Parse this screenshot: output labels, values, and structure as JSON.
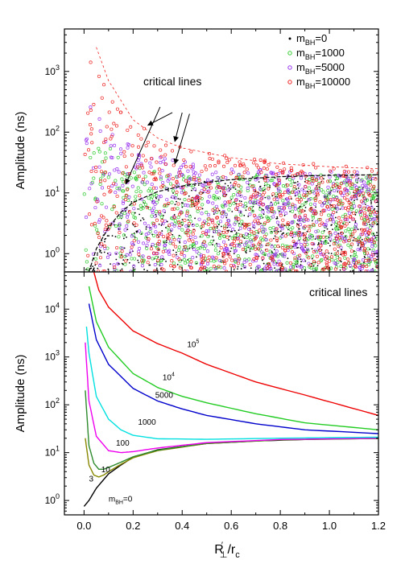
{
  "figure": {
    "x_axis_label": "R′⊥/rc",
    "x_axis_label_parts": {
      "base": "R",
      "prime": "′",
      "sub": "⊥",
      "slash": "/r",
      "sub2": "c"
    }
  },
  "chart_data": [
    {
      "type": "scatter",
      "ylabel": "Amplitude (ns)",
      "yscale": "log",
      "ylim": [
        0.5,
        5000
      ],
      "xlim": [
        -0.08,
        1.2
      ],
      "y_ticks": [
        {
          "value": 1,
          "label": "10^0"
        },
        {
          "value": 10,
          "label": "10^1"
        },
        {
          "value": 100,
          "label": "10^2"
        },
        {
          "value": 1000,
          "label": "10^3"
        }
      ],
      "annotation": "critical lines",
      "legend_position": "top-right",
      "legend": [
        {
          "base": "m",
          "sub": "BH",
          "suffix": "=0",
          "color": "#000000",
          "marker": "dot"
        },
        {
          "base": "m",
          "sub": "BH",
          "suffix": "=1000",
          "color": "#33cc33",
          "marker": "open-circle"
        },
        {
          "base": "m",
          "sub": "BH",
          "suffix": "=5000",
          "color": "#9933ee",
          "marker": "open-circle"
        },
        {
          "base": "m",
          "sub": "BH",
          "suffix": "=10000",
          "color": "#ee2222",
          "marker": "open-circle"
        }
      ],
      "series": [
        {
          "name": "mBH=0",
          "envelope": {
            "x": [
              0.02,
              0.05,
              0.1,
              0.2,
              0.3,
              0.5,
              0.7,
              0.9,
              1.1,
              1.2
            ],
            "y_max": [
              0.6,
              1.5,
              3.0,
              8.0,
              12.0,
              17.0,
              19.0,
              20.0,
              20.0,
              20.0
            ],
            "y_min": 0.5
          }
        },
        {
          "name": "mBH=1000",
          "envelope": {
            "x": [
              0.0,
              0.05,
              0.1,
              0.2,
              0.3,
              0.5,
              0.8,
              1.2
            ],
            "y_max": [
              300,
              120,
              60,
              30,
              22,
              20,
              20,
              20
            ],
            "y_min": 0.5
          }
        },
        {
          "name": "mBH=5000",
          "envelope": {
            "x": [
              0.0,
              0.05,
              0.1,
              0.2,
              0.3,
              0.5,
              0.8,
              1.2
            ],
            "y_max": [
              1200,
              350,
              150,
              60,
              40,
              28,
              23,
              22
            ],
            "y_min": 0.5
          }
        },
        {
          "name": "mBH=10000",
          "envelope": {
            "x": [
              0.0,
              0.05,
              0.1,
              0.2,
              0.3,
              0.5,
              0.8,
              1.2
            ],
            "y_max": [
              4500,
              1200,
              400,
              160,
              80,
              45,
              32,
              27
            ],
            "y_min": 0.5
          }
        }
      ],
      "critical_line_black": {
        "x": [
          0.02,
          0.05,
          0.1,
          0.15,
          0.2,
          0.3,
          0.4,
          0.5,
          0.6,
          0.7,
          0.8,
          0.9,
          1.0,
          1.1,
          1.2
        ],
        "y": [
          0.5,
          1.2,
          2.7,
          4.8,
          7.0,
          10.5,
          13.0,
          15.0,
          16.5,
          17.5,
          18.5,
          19.0,
          19.5,
          19.7,
          19.8
        ]
      },
      "critical_line_red": {
        "x": [
          0.05,
          0.1,
          0.2,
          0.3,
          0.4,
          0.6,
          0.8,
          1.0,
          1.2
        ],
        "y": [
          2500,
          700,
          160,
          80,
          55,
          38,
          30,
          27,
          25
        ]
      }
    },
    {
      "type": "line",
      "ylabel": "Amplitude (ns)",
      "yscale": "log",
      "ylim": [
        0.5,
        60000
      ],
      "xlim": [
        -0.08,
        1.2
      ],
      "x_ticks": [
        "0.0",
        "0.2",
        "0.4",
        "0.6",
        "0.8",
        "1.0",
        "1.2"
      ],
      "y_ticks": [
        {
          "value": 1,
          "label": "10^0"
        },
        {
          "value": 10,
          "label": "10^1"
        },
        {
          "value": 100,
          "label": "10^2"
        },
        {
          "value": 1000,
          "label": "10^3"
        },
        {
          "value": 10000,
          "label": "10^4"
        }
      ],
      "annotation": "critical lines",
      "series": [
        {
          "name": "mBH=0",
          "color": "#000000",
          "x": [
            0.0,
            0.02,
            0.05,
            0.1,
            0.15,
            0.2,
            0.3,
            0.5,
            0.7,
            1.0,
            1.2
          ],
          "y": [
            0.75,
            1.0,
            1.8,
            3.6,
            5.5,
            8.0,
            11.5,
            15.5,
            17.5,
            19.5,
            19.8
          ]
        },
        {
          "name": "3",
          "color": "#888800",
          "x": [
            0.005,
            0.02,
            0.04,
            0.06,
            0.08,
            0.1,
            0.15,
            0.2,
            0.3,
            0.5,
            0.8,
            1.2
          ],
          "y": [
            20,
            5.5,
            3.4,
            3.1,
            3.4,
            4.0,
            5.7,
            7.8,
            11,
            15.5,
            18.5,
            19.8
          ]
        },
        {
          "name": "10",
          "color": "#2d8a2d",
          "x": [
            0.005,
            0.02,
            0.04,
            0.06,
            0.08,
            0.1,
            0.15,
            0.2,
            0.3,
            0.5,
            0.8,
            1.2
          ],
          "y": [
            200,
            14,
            6.0,
            4.5,
            4.5,
            4.9,
            6.3,
            8.2,
            11.3,
            15.7,
            18.6,
            19.8
          ]
        },
        {
          "name": "100",
          "color": "#ee00ee",
          "x": [
            0.005,
            0.02,
            0.05,
            0.1,
            0.15,
            0.2,
            0.3,
            0.5,
            0.8,
            1.2
          ],
          "y": [
            2000,
            120,
            22,
            11,
            10,
            10.5,
            12.5,
            16.2,
            18.8,
            20
          ]
        },
        {
          "name": "1000",
          "color": "#00e0e0",
          "x": [
            0.01,
            0.02,
            0.05,
            0.1,
            0.15,
            0.2,
            0.3,
            0.5,
            0.8,
            1.2
          ],
          "y": [
            4300,
            1200,
            150,
            50,
            30,
            23,
            19.5,
            19,
            20,
            21
          ]
        },
        {
          "name": "5000",
          "color": "#0000cc",
          "x": [
            0.02,
            0.05,
            0.1,
            0.2,
            0.3,
            0.4,
            0.5,
            0.7,
            0.9,
            1.2
          ],
          "y": [
            13000,
            2300,
            700,
            220,
            120,
            82,
            60,
            40,
            30,
            25
          ]
        },
        {
          "name": "10^4",
          "color": "#22cc22",
          "x": [
            0.02,
            0.05,
            0.1,
            0.2,
            0.3,
            0.4,
            0.5,
            0.7,
            0.9,
            1.2
          ],
          "y": [
            30000,
            5500,
            1600,
            450,
            230,
            150,
            110,
            65,
            42,
            30
          ]
        },
        {
          "name": "10^5",
          "color": "#ee0000",
          "x": [
            0.04,
            0.06,
            0.1,
            0.2,
            0.3,
            0.4,
            0.5,
            0.7,
            0.9,
            1.2
          ],
          "y": [
            60000,
            25000,
            11000,
            3500,
            1900,
            1200,
            700,
            300,
            160,
            60
          ]
        }
      ],
      "curve_labels": [
        {
          "base": "m",
          "sub": "BH",
          "suffix": "=0",
          "x": 0.1,
          "y": 0.95
        },
        {
          "base": "3",
          "sub": "",
          "suffix": "",
          "x": 0.02,
          "y": 2.5
        },
        {
          "base": "10",
          "sub": "",
          "suffix": "",
          "x": 0.07,
          "y": 3.9
        },
        {
          "base": "100",
          "sub": "",
          "suffix": "",
          "x": 0.13,
          "y": 14
        },
        {
          "base": "1000",
          "sub": "",
          "suffix": "",
          "x": 0.22,
          "y": 38
        },
        {
          "base": "5000",
          "sub": "",
          "suffix": "",
          "x": 0.29,
          "y": 140
        },
        {
          "base": "10",
          "sup": "4",
          "sub": "",
          "suffix": "",
          "x": 0.32,
          "y": 330
        },
        {
          "base": "10",
          "sup": "5",
          "sub": "",
          "suffix": "",
          "x": 0.42,
          "y": 1600
        }
      ]
    }
  ]
}
